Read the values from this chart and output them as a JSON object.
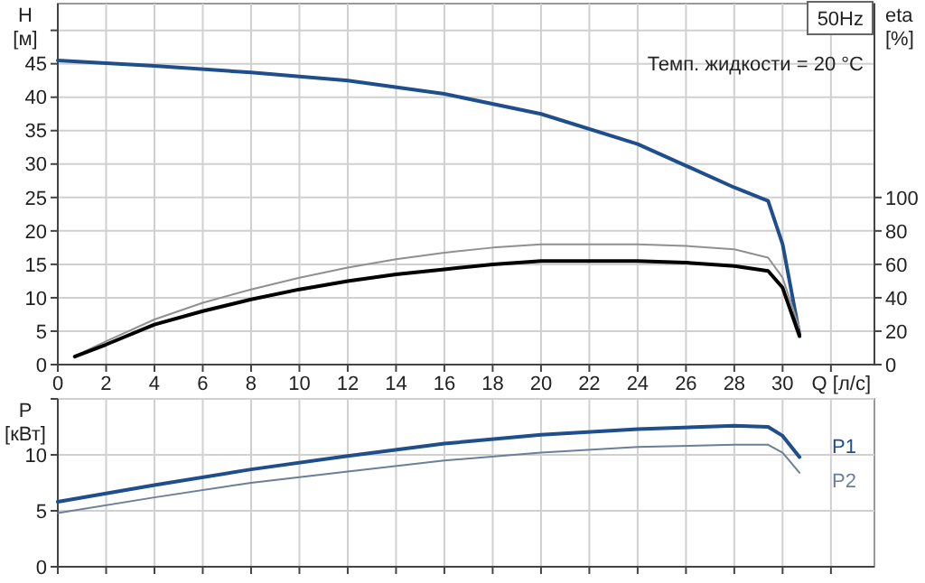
{
  "chart_data": [
    {
      "type": "line",
      "ylabel": "H [м]",
      "y2label": "eta [%]",
      "xlabel": "Q [л/с]",
      "annotations": [
        "50Hz",
        "Темп. жидкости = 20 °C"
      ],
      "grid": true,
      "xlim": [
        0,
        33.8
      ],
      "xticks": [
        0,
        2,
        4,
        6,
        8,
        10,
        12,
        14,
        16,
        18,
        20,
        22,
        24,
        26,
        28,
        30,
        {
          "value": 32,
          "label": null
        }
      ],
      "ylim": [
        0,
        54
      ],
      "yticks": [
        0,
        5,
        10,
        15,
        20,
        25,
        30,
        35,
        40,
        45,
        {
          "value": 50,
          "label": null
        }
      ],
      "y2lim": [
        0,
        216
      ],
      "y2ticks": [
        0,
        20,
        40,
        60,
        80,
        100
      ],
      "series": [
        {
          "color": "#1f4e8c",
          "x": [
            0,
            4,
            8,
            12,
            16,
            20,
            24,
            28,
            29.4,
            30,
            30.7
          ],
          "values": [
            45.5,
            44.7,
            43.7,
            42.5,
            40.5,
            37.5,
            33,
            26.5,
            24.5,
            18,
            4.5
          ]
        },
        {
          "color": "#909090",
          "axis": "y2",
          "x": [
            0.7,
            2,
            4,
            6,
            8,
            10,
            12,
            14,
            16,
            18,
            20,
            22,
            24,
            26,
            28,
            29.4,
            30,
            30.7
          ],
          "values": [
            5,
            14,
            27,
            37,
            45,
            52,
            58,
            63,
            67,
            70,
            72,
            72,
            72,
            71,
            69,
            64,
            52,
            22
          ]
        },
        {
          "color": "#000000",
          "axis": "y2",
          "x": [
            0.7,
            2,
            4,
            6,
            8,
            10,
            12,
            14,
            16,
            18,
            20,
            22,
            24,
            26,
            28,
            29.4,
            30,
            30.7
          ],
          "values": [
            4.8,
            12,
            24,
            32,
            39,
            45,
            50,
            54,
            57,
            60,
            62,
            62,
            62,
            61,
            59,
            56,
            46,
            17
          ]
        }
      ]
    },
    {
      "type": "line",
      "ylabel": "P [кВт]",
      "grid": true,
      "tick_labels": "y",
      "xlim": [
        0,
        33.8
      ],
      "xticks": [
        0,
        2,
        4,
        6,
        8,
        10,
        12,
        14,
        16,
        18,
        20,
        22,
        24,
        26,
        28,
        30,
        32
      ],
      "ylim": [
        0,
        15
      ],
      "yticks": [
        0,
        5,
        10,
        {
          "value": 15,
          "label": null
        }
      ],
      "series": [
        {
          "name": "P1",
          "color": "#1f4e8c",
          "x": [
            0,
            4,
            8,
            12,
            16,
            20,
            24,
            28,
            29.4,
            30,
            30.7
          ],
          "values": [
            5.8,
            7.3,
            8.7,
            9.9,
            11,
            11.8,
            12.3,
            12.6,
            12.5,
            11.7,
            9.8
          ]
        },
        {
          "name": "P2",
          "color": "#6a7f9a",
          "x": [
            0,
            4,
            8,
            12,
            16,
            20,
            24,
            28,
            29.4,
            30,
            30.7
          ],
          "values": [
            4.8,
            6.2,
            7.5,
            8.5,
            9.5,
            10.2,
            10.7,
            10.9,
            10.9,
            10.2,
            8.4
          ]
        }
      ]
    }
  ]
}
